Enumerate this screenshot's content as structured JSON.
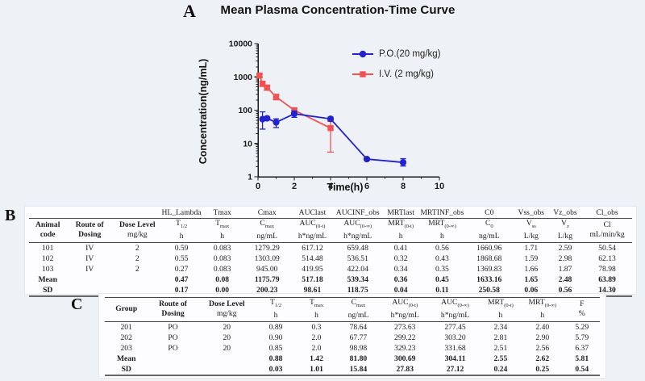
{
  "figure": {
    "panel_a_label": "A",
    "panel_b_label": "B",
    "panel_c_label": "C",
    "background_color": "#eef1f6",
    "panel_color": "#fdfdff"
  },
  "chart_data": {
    "type": "line",
    "title": "Mean Plasma Concentration-Time Curve",
    "xlabel": "Time(h)",
    "ylabel": "Concentration(ng/mL)",
    "x_scale": "linear",
    "y_scale": "log10",
    "xlim": [
      0,
      10
    ],
    "ylim": [
      1,
      10000
    ],
    "x_major_ticks": [
      0,
      2,
      4,
      6,
      8,
      10
    ],
    "x_minor_ticks": [
      1,
      3,
      5,
      7,
      9
    ],
    "y_major_ticks": [
      1,
      10,
      100,
      1000,
      10000
    ],
    "grid": false,
    "legend_position": "top-right",
    "series": [
      {
        "name": "I.V. (2 mg/kg)",
        "color": "#f05252",
        "marker": "square",
        "x": [
          0.083,
          0.25,
          0.5,
          1,
          2,
          4
        ],
        "y": [
          1100,
          620,
          480,
          250,
          100,
          29
        ],
        "err_lo": [
          990,
          515,
          395,
          205,
          86,
          5.5
        ],
        "err_hi": [
          1230,
          740,
          560,
          300,
          116,
          46
        ]
      },
      {
        "name": "P.O.(20 mg/kg)",
        "color": "#2323cd",
        "marker": "circle",
        "x": [
          0.25,
          0.5,
          1,
          2,
          4,
          6,
          8
        ],
        "y": [
          54,
          57,
          43,
          78,
          55,
          3.4,
          2.7
        ],
        "err_lo": [
          27,
          51,
          30,
          61,
          49,
          3.1,
          2.1
        ],
        "err_hi": [
          89,
          64,
          55,
          95,
          62,
          3.7,
          3.5
        ]
      }
    ],
    "legend_order": [
      1,
      0
    ]
  },
  "table_b": {
    "param_row_lead_cols": 3,
    "param_row": [
      "HL_Lambda_",
      "Tmax",
      "Cmax",
      "AUClast",
      "AUCINF_obs",
      "MRTlast",
      "MRTINF_obs",
      "C0",
      "Vss_obs",
      "Vz_obs",
      "Cl_obs"
    ],
    "columns": [
      {
        "line1": "Animal",
        "line2": "code",
        "bold1": true,
        "bold2": true
      },
      {
        "line1": "Route of",
        "line2": "Dosing",
        "bold1": true,
        "bold2": true
      },
      {
        "line1": "Dose Level",
        "line2": "mg/kg",
        "bold1": true,
        "bold2": false
      },
      {
        "line1": "T",
        "sub": "1/2",
        "line2": "h"
      },
      {
        "line1": "T",
        "sub": "max",
        "line2": "h"
      },
      {
        "line1": "C",
        "sub": "max",
        "line2": "ng/mL"
      },
      {
        "line1": "AUC",
        "sub": "(0-t)",
        "line2": "h*ng/mL"
      },
      {
        "line1": "AUC",
        "sub": "(0-∞)",
        "line2": "h*ng/mL"
      },
      {
        "line1": "MRT",
        "sub": "(0-t)",
        "line2": "h"
      },
      {
        "line1": "MRT",
        "sub": "(0-∞)",
        "line2": "h"
      },
      {
        "line1": "C",
        "sub": "0",
        "line2": "ng/mL"
      },
      {
        "line1": "V",
        "sub": "ss",
        "line2": "L/kg"
      },
      {
        "line1": "V",
        "sub": "z",
        "line2": "L/kg"
      },
      {
        "line1": "Cl",
        "line2": "mL/min/kg"
      }
    ],
    "rows": [
      [
        "101",
        "IV",
        "2",
        "0.59",
        "0.083",
        "1279.29",
        "617.12",
        "659.48",
        "0.41",
        "0.56",
        "1660.96",
        "1.71",
        "2.59",
        "50.54"
      ],
      [
        "102",
        "IV",
        "2",
        "0.55",
        "0.083",
        "1303.09",
        "514.48",
        "536.51",
        "0.32",
        "0.43",
        "1868.68",
        "1.59",
        "2.98",
        "62.13"
      ],
      [
        "103",
        "IV",
        "2",
        "0.27",
        "0.083",
        "945.00",
        "419.95",
        "422.04",
        "0.34",
        "0.35",
        "1369.83",
        "1.66",
        "1.87",
        "78.98"
      ],
      [
        "Mean",
        "",
        "",
        "0.47",
        "0.08",
        "1175.79",
        "517.18",
        "539.34",
        "0.36",
        "0.45",
        "1633.16",
        "1.65",
        "2.48",
        "63.89"
      ],
      [
        "SD",
        "",
        "",
        "0.17",
        "0.00",
        "200.23",
        "98.61",
        "118.75",
        "0.04",
        "0.11",
        "250.58",
        "0.06",
        "0.56",
        "14.30"
      ]
    ]
  },
  "table_c": {
    "columns": [
      {
        "line1": "Group",
        "line2": "",
        "bold1": true,
        "bold2": false
      },
      {
        "line1": "Route of",
        "line2": "Dosing",
        "bold1": true,
        "bold2": true
      },
      {
        "line1": "Dose Level",
        "line2": "mg/kg",
        "bold1": true,
        "bold2": false
      },
      {
        "line1": "T",
        "sub": "1/2",
        "line2": "h"
      },
      {
        "line1": "T",
        "sub": "max",
        "line2": "h"
      },
      {
        "line1": "C",
        "sub": "max",
        "line2": "ng/mL"
      },
      {
        "line1": "AUC",
        "sub": "(0-t)",
        "line2": "h*ng/mL"
      },
      {
        "line1": "AUC",
        "sub": "(0-∞)",
        "line2": "h*ng/mL"
      },
      {
        "line1": "MRT",
        "sub": "(0-t)",
        "line2": "h"
      },
      {
        "line1": "MRT",
        "sub": "(0-∞)",
        "line2": "h"
      },
      {
        "line1": "F",
        "line2": "%"
      }
    ],
    "rows": [
      [
        "201",
        "PO",
        "20",
        "0.89",
        "0.3",
        "78.64",
        "273.63",
        "277.45",
        "2.34",
        "2.40",
        "5.29"
      ],
      [
        "202",
        "PO",
        "20",
        "0.90",
        "2.0",
        "67.77",
        "299.22",
        "303.20",
        "2.81",
        "2.90",
        "5.79"
      ],
      [
        "203",
        "PO",
        "20",
        "0.85",
        "2.0",
        "98.98",
        "329.23",
        "331.68",
        "2.51",
        "2.56",
        "6.37"
      ],
      [
        "Mean",
        "",
        "",
        "0.88",
        "1.42",
        "81.80",
        "300.69",
        "304.11",
        "2.55",
        "2.62",
        "5.81"
      ],
      [
        "SD",
        "",
        "",
        "0.03",
        "1.01",
        "15.84",
        "27.83",
        "27.12",
        "0.24",
        "0.25",
        "0.54"
      ]
    ]
  }
}
